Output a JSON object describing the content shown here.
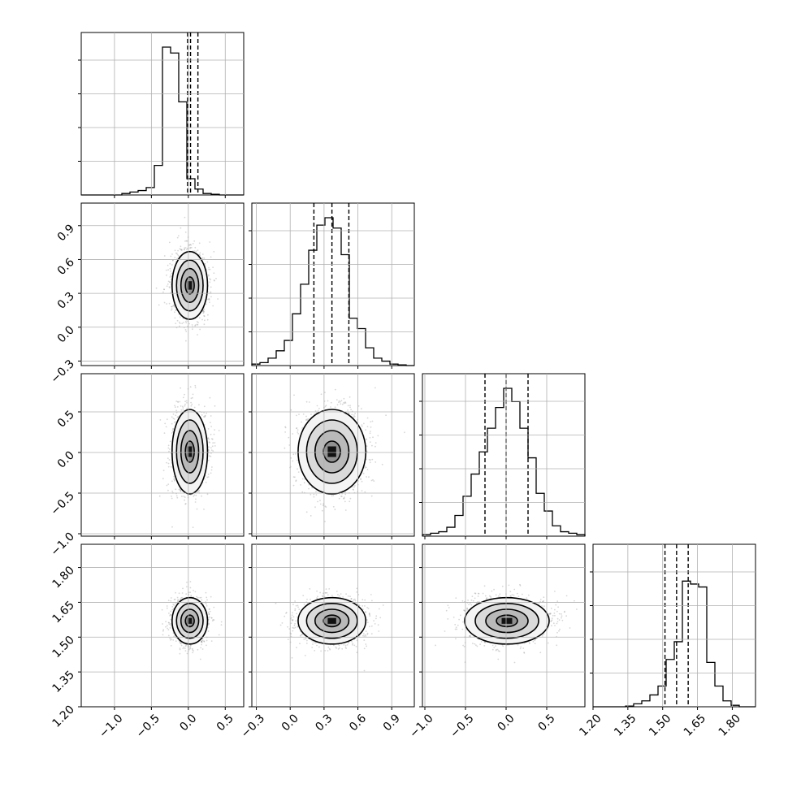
{
  "chart_data": {
    "type": "corner",
    "grid": true,
    "quantile_line_style": "dashed",
    "contour_color": "#000000",
    "scatter_color": "#8c8c8c",
    "histogram_color": "#000000",
    "parameters": [
      {
        "range": [
          -1.45,
          0.75
        ],
        "ticks": [
          -1.0,
          -0.5,
          0.0,
          0.5
        ],
        "tick_labels": [
          "−1.0",
          "−0.5",
          "0.0",
          "0.5"
        ],
        "mean": 0.02,
        "sd": 0.12,
        "quantiles": [
          -0.01,
          0.03,
          0.13
        ]
      },
      {
        "range": [
          -0.34,
          1.1
        ],
        "ticks": [
          -0.3,
          0.0,
          0.3,
          0.6,
          0.9
        ],
        "tick_labels": [
          "−0.3",
          "0.0",
          "0.3",
          "0.6",
          "0.9"
        ],
        "mean": 0.37,
        "sd": 0.15,
        "quantiles": [
          0.21,
          0.37,
          0.52
        ]
      },
      {
        "range": [
          -1.03,
          0.97
        ],
        "ticks": [
          -1.0,
          -0.5,
          0.0,
          0.5
        ],
        "tick_labels": [
          "−1.0",
          "−0.5",
          "0.0",
          "0.5"
        ],
        "mean": 0.01,
        "sd": 0.26,
        "quantiles": [
          -0.26,
          0.0,
          0.27
        ]
      },
      {
        "range": [
          1.2,
          1.9
        ],
        "ticks": [
          1.2,
          1.35,
          1.5,
          1.65,
          1.8
        ],
        "tick_labels": [
          "1.20",
          "1.35",
          "1.50",
          "1.65",
          "1.80"
        ],
        "mean": 1.57,
        "sd": 0.05,
        "quantiles": [
          1.51,
          1.56,
          1.61
        ]
      }
    ],
    "histograms": [
      {
        "param": 0,
        "bins": 20,
        "heights": [
          0,
          0,
          0,
          0,
          0,
          0.01,
          0.02,
          0.03,
          0.05,
          0.2,
          1.0,
          0.96,
          0.63,
          0.11,
          0.04,
          0.01,
          0.005,
          0,
          0,
          0
        ]
      },
      {
        "param": 1,
        "bins": 20,
        "heights": [
          0.01,
          0.02,
          0.05,
          0.1,
          0.17,
          0.35,
          0.55,
          0.78,
          0.95,
          1.0,
          0.93,
          0.75,
          0.32,
          0.25,
          0.12,
          0.05,
          0.03,
          0.01,
          0.005,
          0
        ]
      },
      {
        "param": 2,
        "bins": 20,
        "heights": [
          0.01,
          0.02,
          0.03,
          0.06,
          0.14,
          0.27,
          0.42,
          0.57,
          0.73,
          0.87,
          1.0,
          0.91,
          0.73,
          0.53,
          0.29,
          0.17,
          0.07,
          0.03,
          0.02,
          0.01
        ]
      },
      {
        "param": 3,
        "bins": 20,
        "heights": [
          0,
          0,
          0,
          0,
          0.005,
          0.02,
          0.04,
          0.08,
          0.14,
          0.32,
          0.44,
          0.85,
          0.83,
          0.81,
          0.3,
          0.14,
          0.04,
          0.01,
          0,
          0
        ]
      }
    ],
    "pairs": [
      {
        "x_param": 0,
        "y_param": 1,
        "n_points": 1400
      },
      {
        "x_param": 0,
        "y_param": 2,
        "n_points": 1400
      },
      {
        "x_param": 1,
        "y_param": 2,
        "n_points": 1400
      },
      {
        "x_param": 0,
        "y_param": 3,
        "n_points": 1400
      },
      {
        "x_param": 1,
        "y_param": 3,
        "n_points": 1400
      },
      {
        "x_param": 2,
        "y_param": 3,
        "n_points": 1400
      }
    ],
    "contour_levels_sigma": [
      0.5,
      1.0,
      1.5,
      2.0
    ]
  }
}
